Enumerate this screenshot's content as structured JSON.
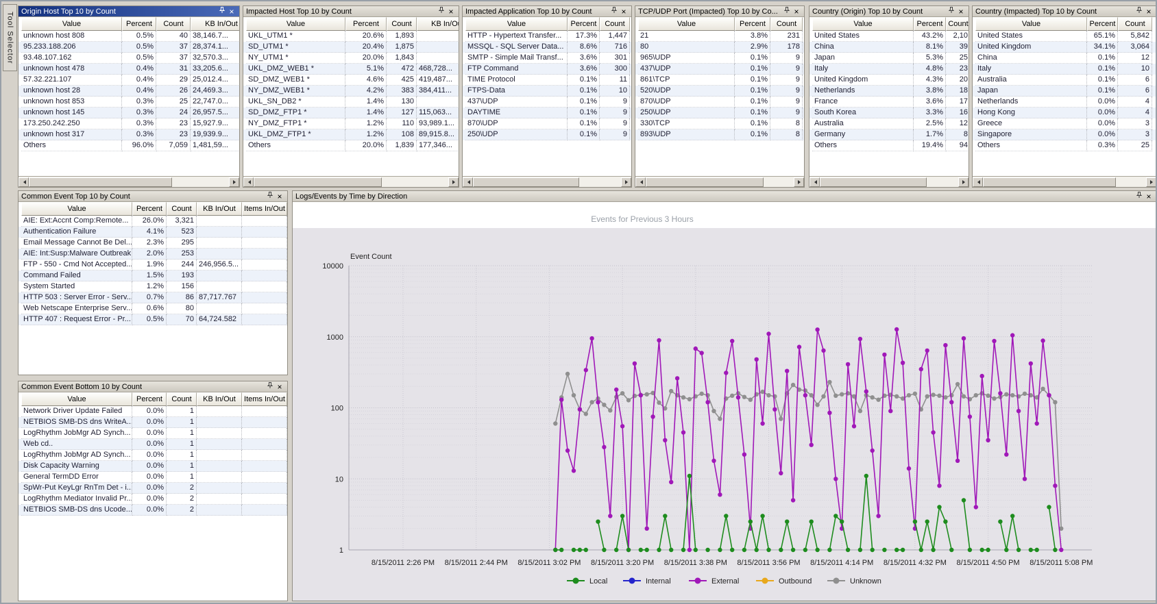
{
  "window": {
    "tool_selector_label": "Tool Selector"
  },
  "icons": {
    "pin": "pin-icon",
    "close_glyph": "×"
  },
  "colors": {
    "active_titlebar": "#13307e",
    "panel_bg": "#ffffff",
    "alt_row": "#edf2fa",
    "chart_bg": "#e5e3e8",
    "local": "#1e8c1e",
    "internal": "#2424cc",
    "external": "#a018b8",
    "outbound": "#e8a81c",
    "unknown": "#8f8f8f"
  },
  "top_panels": [
    {
      "key": "origin-host",
      "title": "Origin Host Top 10 by Count",
      "active": true,
      "columns": [
        "Value",
        "Percent",
        "Count",
        "KB In/Out"
      ],
      "rows": [
        [
          "unknown host 808",
          "0.5%",
          "40",
          "38,146.7..."
        ],
        [
          "95.233.188.206",
          "0.5%",
          "37",
          "28,374.1..."
        ],
        [
          "93.48.107.162",
          "0.5%",
          "37",
          "32,570.3..."
        ],
        [
          "unknown host 478",
          "0.4%",
          "31",
          "33,205.6..."
        ],
        [
          "57.32.221.107",
          "0.4%",
          "29",
          "25,012.4..."
        ],
        [
          "unknown host 28",
          "0.4%",
          "26",
          "24,469.3..."
        ],
        [
          "unknown host 853",
          "0.3%",
          "25",
          "22,747.0..."
        ],
        [
          "unknown host 145",
          "0.3%",
          "24",
          "26,957.5..."
        ],
        [
          "173.250.242.250",
          "0.3%",
          "23",
          "15,927.9..."
        ],
        [
          "unknown host 317",
          "0.3%",
          "23",
          "19,939.9..."
        ],
        [
          "Others",
          "96.0%",
          "7,059",
          "1,481,59..."
        ]
      ]
    },
    {
      "key": "impacted-host",
      "title": "Impacted Host Top 10 by Count",
      "active": false,
      "columns": [
        "Value",
        "Percent",
        "Count",
        "KB In/Out"
      ],
      "rows": [
        [
          "UKL_UTM1 *",
          "20.6%",
          "1,893",
          ""
        ],
        [
          "SD_UTM1 *",
          "20.4%",
          "1,875",
          ""
        ],
        [
          "NY_UTM1 *",
          "20.0%",
          "1,843",
          ""
        ],
        [
          "UKL_DMZ_WEB1 *",
          "5.1%",
          "472",
          "468,728..."
        ],
        [
          "SD_DMZ_WEB1 *",
          "4.6%",
          "425",
          "419,487..."
        ],
        [
          "NY_DMZ_WEB1 *",
          "4.2%",
          "383",
          "384,411..."
        ],
        [
          "UKL_SN_DB2 *",
          "1.4%",
          "130",
          ""
        ],
        [
          "SD_DMZ_FTP1 *",
          "1.4%",
          "127",
          "115,063..."
        ],
        [
          "NY_DMZ_FTP1 *",
          "1.2%",
          "110",
          "93,989.1..."
        ],
        [
          "UKL_DMZ_FTP1 *",
          "1.2%",
          "108",
          "89,915.8..."
        ],
        [
          "Others",
          "20.0%",
          "1,839",
          "177,346..."
        ]
      ]
    },
    {
      "key": "impacted-application",
      "title": "Impacted Application Top 10 by Count",
      "active": false,
      "columns": [
        "Value",
        "Percent",
        "Count"
      ],
      "rows": [
        [
          "HTTP - Hypertext Transfer...",
          "17.3%",
          "1,447"
        ],
        [
          "MSSQL - SQL Server Data...",
          "8.6%",
          "716"
        ],
        [
          "SMTP - Simple Mail Transf...",
          "3.6%",
          "301"
        ],
        [
          "FTP Command",
          "3.6%",
          "300"
        ],
        [
          "TIME Protocol",
          "0.1%",
          "11"
        ],
        [
          "FTPS-Data",
          "0.1%",
          "10"
        ],
        [
          "437\\UDP",
          "0.1%",
          "9"
        ],
        [
          "DAYTIME",
          "0.1%",
          "9"
        ],
        [
          "870\\UDP",
          "0.1%",
          "9"
        ],
        [
          "250\\UDP",
          "0.1%",
          "9"
        ]
      ]
    },
    {
      "key": "tcp-udp-port",
      "title": "TCP/UDP Port (Impacted) Top 10 by Co...",
      "active": false,
      "columns": [
        "Value",
        "Percent",
        "Count"
      ],
      "rows": [
        [
          "21",
          "3.8%",
          "231"
        ],
        [
          "80",
          "2.9%",
          "178"
        ],
        [
          "965\\UDP",
          "0.1%",
          "9"
        ],
        [
          "437\\UDP",
          "0.1%",
          "9"
        ],
        [
          "861\\TCP",
          "0.1%",
          "9"
        ],
        [
          "520\\UDP",
          "0.1%",
          "9"
        ],
        [
          "870\\UDP",
          "0.1%",
          "9"
        ],
        [
          "250\\UDP",
          "0.1%",
          "9"
        ],
        [
          "330\\TCP",
          "0.1%",
          "8"
        ],
        [
          "893\\UDP",
          "0.1%",
          "8"
        ]
      ]
    },
    {
      "key": "country-origin",
      "title": "Country (Origin) Top 10 by Count",
      "active": false,
      "columns": [
        "Value",
        "Percent",
        "Count"
      ],
      "rows": [
        [
          "United States",
          "43.2%",
          "2,10"
        ],
        [
          "China",
          "8.1%",
          "39"
        ],
        [
          "Japan",
          "5.3%",
          "25"
        ],
        [
          "Italy",
          "4.8%",
          "23"
        ],
        [
          "United Kingdom",
          "4.3%",
          "20"
        ],
        [
          "Netherlands",
          "3.8%",
          "18"
        ],
        [
          "France",
          "3.6%",
          "17"
        ],
        [
          "South Korea",
          "3.3%",
          "16"
        ],
        [
          "Australia",
          "2.5%",
          "12"
        ],
        [
          "Germany",
          "1.7%",
          "8"
        ],
        [
          "Others",
          "19.4%",
          "94"
        ]
      ]
    },
    {
      "key": "country-impacted",
      "title": "Country (Impacted) Top 10 by Count",
      "active": false,
      "columns": [
        "Value",
        "Percent",
        "Count"
      ],
      "rows": [
        [
          "United States",
          "65.1%",
          "5,842"
        ],
        [
          "United Kingdom",
          "34.1%",
          "3,064"
        ],
        [
          "China",
          "0.1%",
          "12"
        ],
        [
          "Italy",
          "0.1%",
          "10"
        ],
        [
          "Australia",
          "0.1%",
          "6"
        ],
        [
          "Japan",
          "0.1%",
          "6"
        ],
        [
          "Netherlands",
          "0.0%",
          "4"
        ],
        [
          "Hong Kong",
          "0.0%",
          "4"
        ],
        [
          "Greece",
          "0.0%",
          "3"
        ],
        [
          "Singapore",
          "0.0%",
          "3"
        ],
        [
          "Others",
          "0.3%",
          "25"
        ]
      ]
    }
  ],
  "left_panels": [
    {
      "key": "common-event-top",
      "title": "Common Event Top 10 by Count",
      "columns": [
        "Value",
        "Percent",
        "Count",
        "KB In/Out",
        "Items In/Out"
      ],
      "rows": [
        [
          "AIE: Ext:Accnt Comp:Remote...",
          "26.0%",
          "3,321",
          "",
          ""
        ],
        [
          "Authentication Failure",
          "4.1%",
          "523",
          "",
          ""
        ],
        [
          "Email Message Cannot Be Del...",
          "2.3%",
          "295",
          "",
          ""
        ],
        [
          "AIE: Int:Susp:Malware Outbreak",
          "2.0%",
          "253",
          "",
          ""
        ],
        [
          "FTP - 550 - Cmd Not Accepted...",
          "1.9%",
          "244",
          "246,956.5...",
          ""
        ],
        [
          "Command Failed",
          "1.5%",
          "193",
          "",
          ""
        ],
        [
          "System Started",
          "1.2%",
          "156",
          "",
          ""
        ],
        [
          "HTTP 503 : Server Error - Serv...",
          "0.7%",
          "86",
          "87,717.767",
          ""
        ],
        [
          "Web Netscape Enterprise Serv...",
          "0.6%",
          "80",
          "",
          ""
        ],
        [
          "HTTP 407 : Request Error - Pr...",
          "0.5%",
          "70",
          "64,724.582",
          ""
        ]
      ]
    },
    {
      "key": "common-event-bottom",
      "title": "Common Event Bottom 10 by Count",
      "columns": [
        "Value",
        "Percent",
        "Count",
        "KB In/Out",
        "Items In/Out"
      ],
      "rows": [
        [
          "Network Driver Update Failed",
          "0.0%",
          "1",
          "",
          ""
        ],
        [
          "NETBIOS SMB-DS dns WriteA...",
          "0.0%",
          "1",
          "",
          ""
        ],
        [
          "LogRhythm JobMgr AD Synch...",
          "0.0%",
          "1",
          "",
          ""
        ],
        [
          "Web cd..",
          "0.0%",
          "1",
          "",
          ""
        ],
        [
          "LogRhythm JobMgr AD Synch...",
          "0.0%",
          "1",
          "",
          ""
        ],
        [
          "Disk Capacity Warning",
          "0.0%",
          "1",
          "",
          ""
        ],
        [
          "General TermDD Error",
          "0.0%",
          "1",
          "",
          ""
        ],
        [
          "SpWr-Put KeyLgr RnTm Det - i...",
          "0.0%",
          "2",
          "",
          ""
        ],
        [
          "LogRhythm Mediator Invalid Pr...",
          "0.0%",
          "2",
          "",
          ""
        ],
        [
          "NETBIOS SMB-DS dns Ucode...",
          "0.0%",
          "2",
          "",
          ""
        ]
      ]
    }
  ],
  "chart_panel": {
    "title": "Logs/Events by Time by Direction"
  },
  "chart_data": {
    "type": "line",
    "title": "Events for Previous 3 Hours",
    "ylabel": "Event Count",
    "y_scale": "log",
    "y_ticks": [
      1,
      10,
      100,
      1000,
      10000
    ],
    "ylim": [
      1,
      10000
    ],
    "grid": true,
    "legend_position": "bottom",
    "x_ticks": [
      "8/15/2011 2:26 PM",
      "8/15/2011 2:44 PM",
      "8/15/2011 3:02 PM",
      "8/15/2011 3:20 PM",
      "8/15/2011 3:38 PM",
      "8/15/2011 3:56 PM",
      "8/15/2011 4:14 PM",
      "8/15/2011 4:32 PM",
      "8/15/2011 4:50 PM",
      "8/15/2011 5:08 PM"
    ],
    "x_tick_interval_min": 18,
    "series_start_min": 37.5,
    "series_step_min": 1.5,
    "series": [
      {
        "name": "Local",
        "color": "#1e8c1e",
        "values": [
          1,
          1,
          null,
          1,
          1,
          1,
          null,
          2.5,
          1,
          null,
          1,
          3,
          1,
          null,
          1,
          1,
          null,
          1,
          3,
          1,
          null,
          1,
          11,
          1,
          null,
          1,
          null,
          1,
          3,
          1,
          null,
          1,
          2.5,
          1,
          3,
          1,
          null,
          1,
          2.5,
          1,
          null,
          1,
          2.5,
          1,
          null,
          1,
          3,
          2.5,
          1,
          null,
          1,
          11,
          1,
          null,
          1,
          null,
          1,
          1,
          null,
          2.5,
          1,
          2.5,
          1,
          4,
          2.5,
          1,
          null,
          5,
          1,
          null,
          1,
          1,
          null,
          2.5,
          1,
          3,
          1,
          null,
          1,
          1,
          null,
          4,
          1,
          null
        ]
      },
      {
        "name": "Internal",
        "color": "#2424cc",
        "values": []
      },
      {
        "name": "External",
        "color": "#a018b8",
        "values": [
          1,
          130,
          25,
          13,
          95,
          340,
          950,
          120,
          28,
          3,
          180,
          55,
          1,
          420,
          150,
          2,
          75,
          890,
          35,
          9,
          260,
          45,
          1,
          680,
          590,
          120,
          18,
          6,
          310,
          870,
          140,
          22,
          2,
          480,
          60,
          1100,
          95,
          12,
          330,
          5,
          720,
          150,
          30,
          1260,
          640,
          85,
          10,
          2,
          410,
          55,
          930,
          170,
          25,
          3,
          560,
          90,
          1270,
          430,
          14,
          2,
          350,
          640,
          45,
          8,
          760,
          120,
          18,
          950,
          75,
          4,
          280,
          35,
          870,
          160,
          22,
          1050,
          90,
          10,
          420,
          60,
          880,
          150,
          8,
          1
        ]
      },
      {
        "name": "Outbound",
        "color": "#e8a81c",
        "values": []
      },
      {
        "name": "Unknown",
        "color": "#8f8f8f",
        "values": [
          60,
          140,
          300,
          150,
          95,
          82,
          120,
          135,
          110,
          92,
          142,
          160,
          128,
          147,
          152,
          155,
          162,
          118,
          98,
          172,
          150,
          140,
          132,
          145,
          158,
          150,
          90,
          70,
          135,
          148,
          160,
          142,
          130,
          155,
          168,
          150,
          145,
          70,
          160,
          210,
          180,
          175,
          150,
          110,
          145,
          230,
          148,
          155,
          160,
          145,
          90,
          150,
          140,
          130,
          148,
          152,
          145,
          135,
          150,
          158,
          95,
          145,
          152,
          148,
          140,
          150,
          215,
          145,
          132,
          150,
          160,
          148,
          135,
          142,
          155,
          150,
          145,
          158,
          150,
          140,
          185,
          150,
          120,
          2
        ]
      }
    ]
  }
}
